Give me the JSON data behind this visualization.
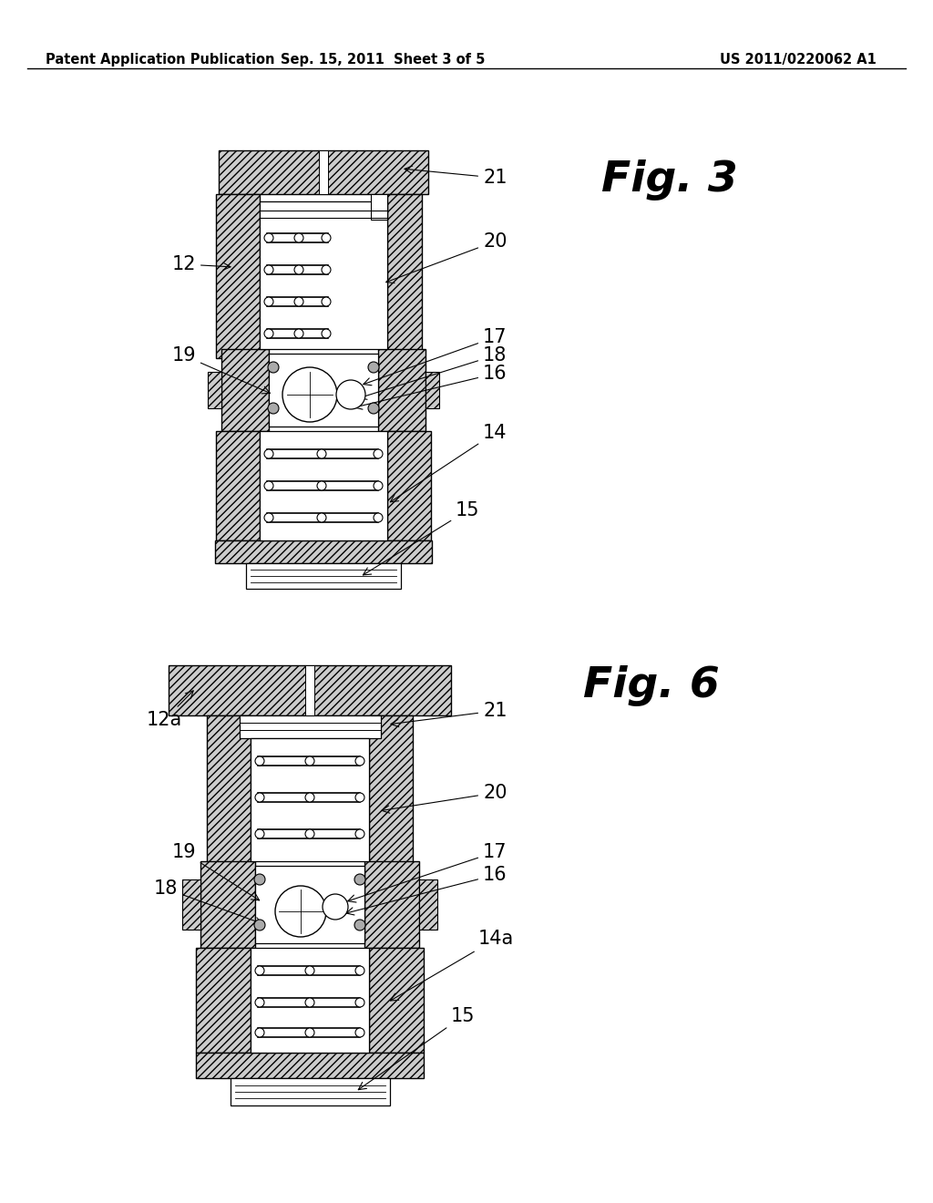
{
  "background_color": "#ffffff",
  "header": {
    "left": "Patent Application Publication",
    "center": "Sep. 15, 2011  Sheet 3 of 5",
    "right": "US 2011/0220062 A1",
    "fontsize": 10.5
  },
  "fig3_title": "Fig. 3",
  "fig6_title": "Fig. 6",
  "title_fontsize": 34,
  "label_fontsize": 15,
  "hatch_density": "////"
}
